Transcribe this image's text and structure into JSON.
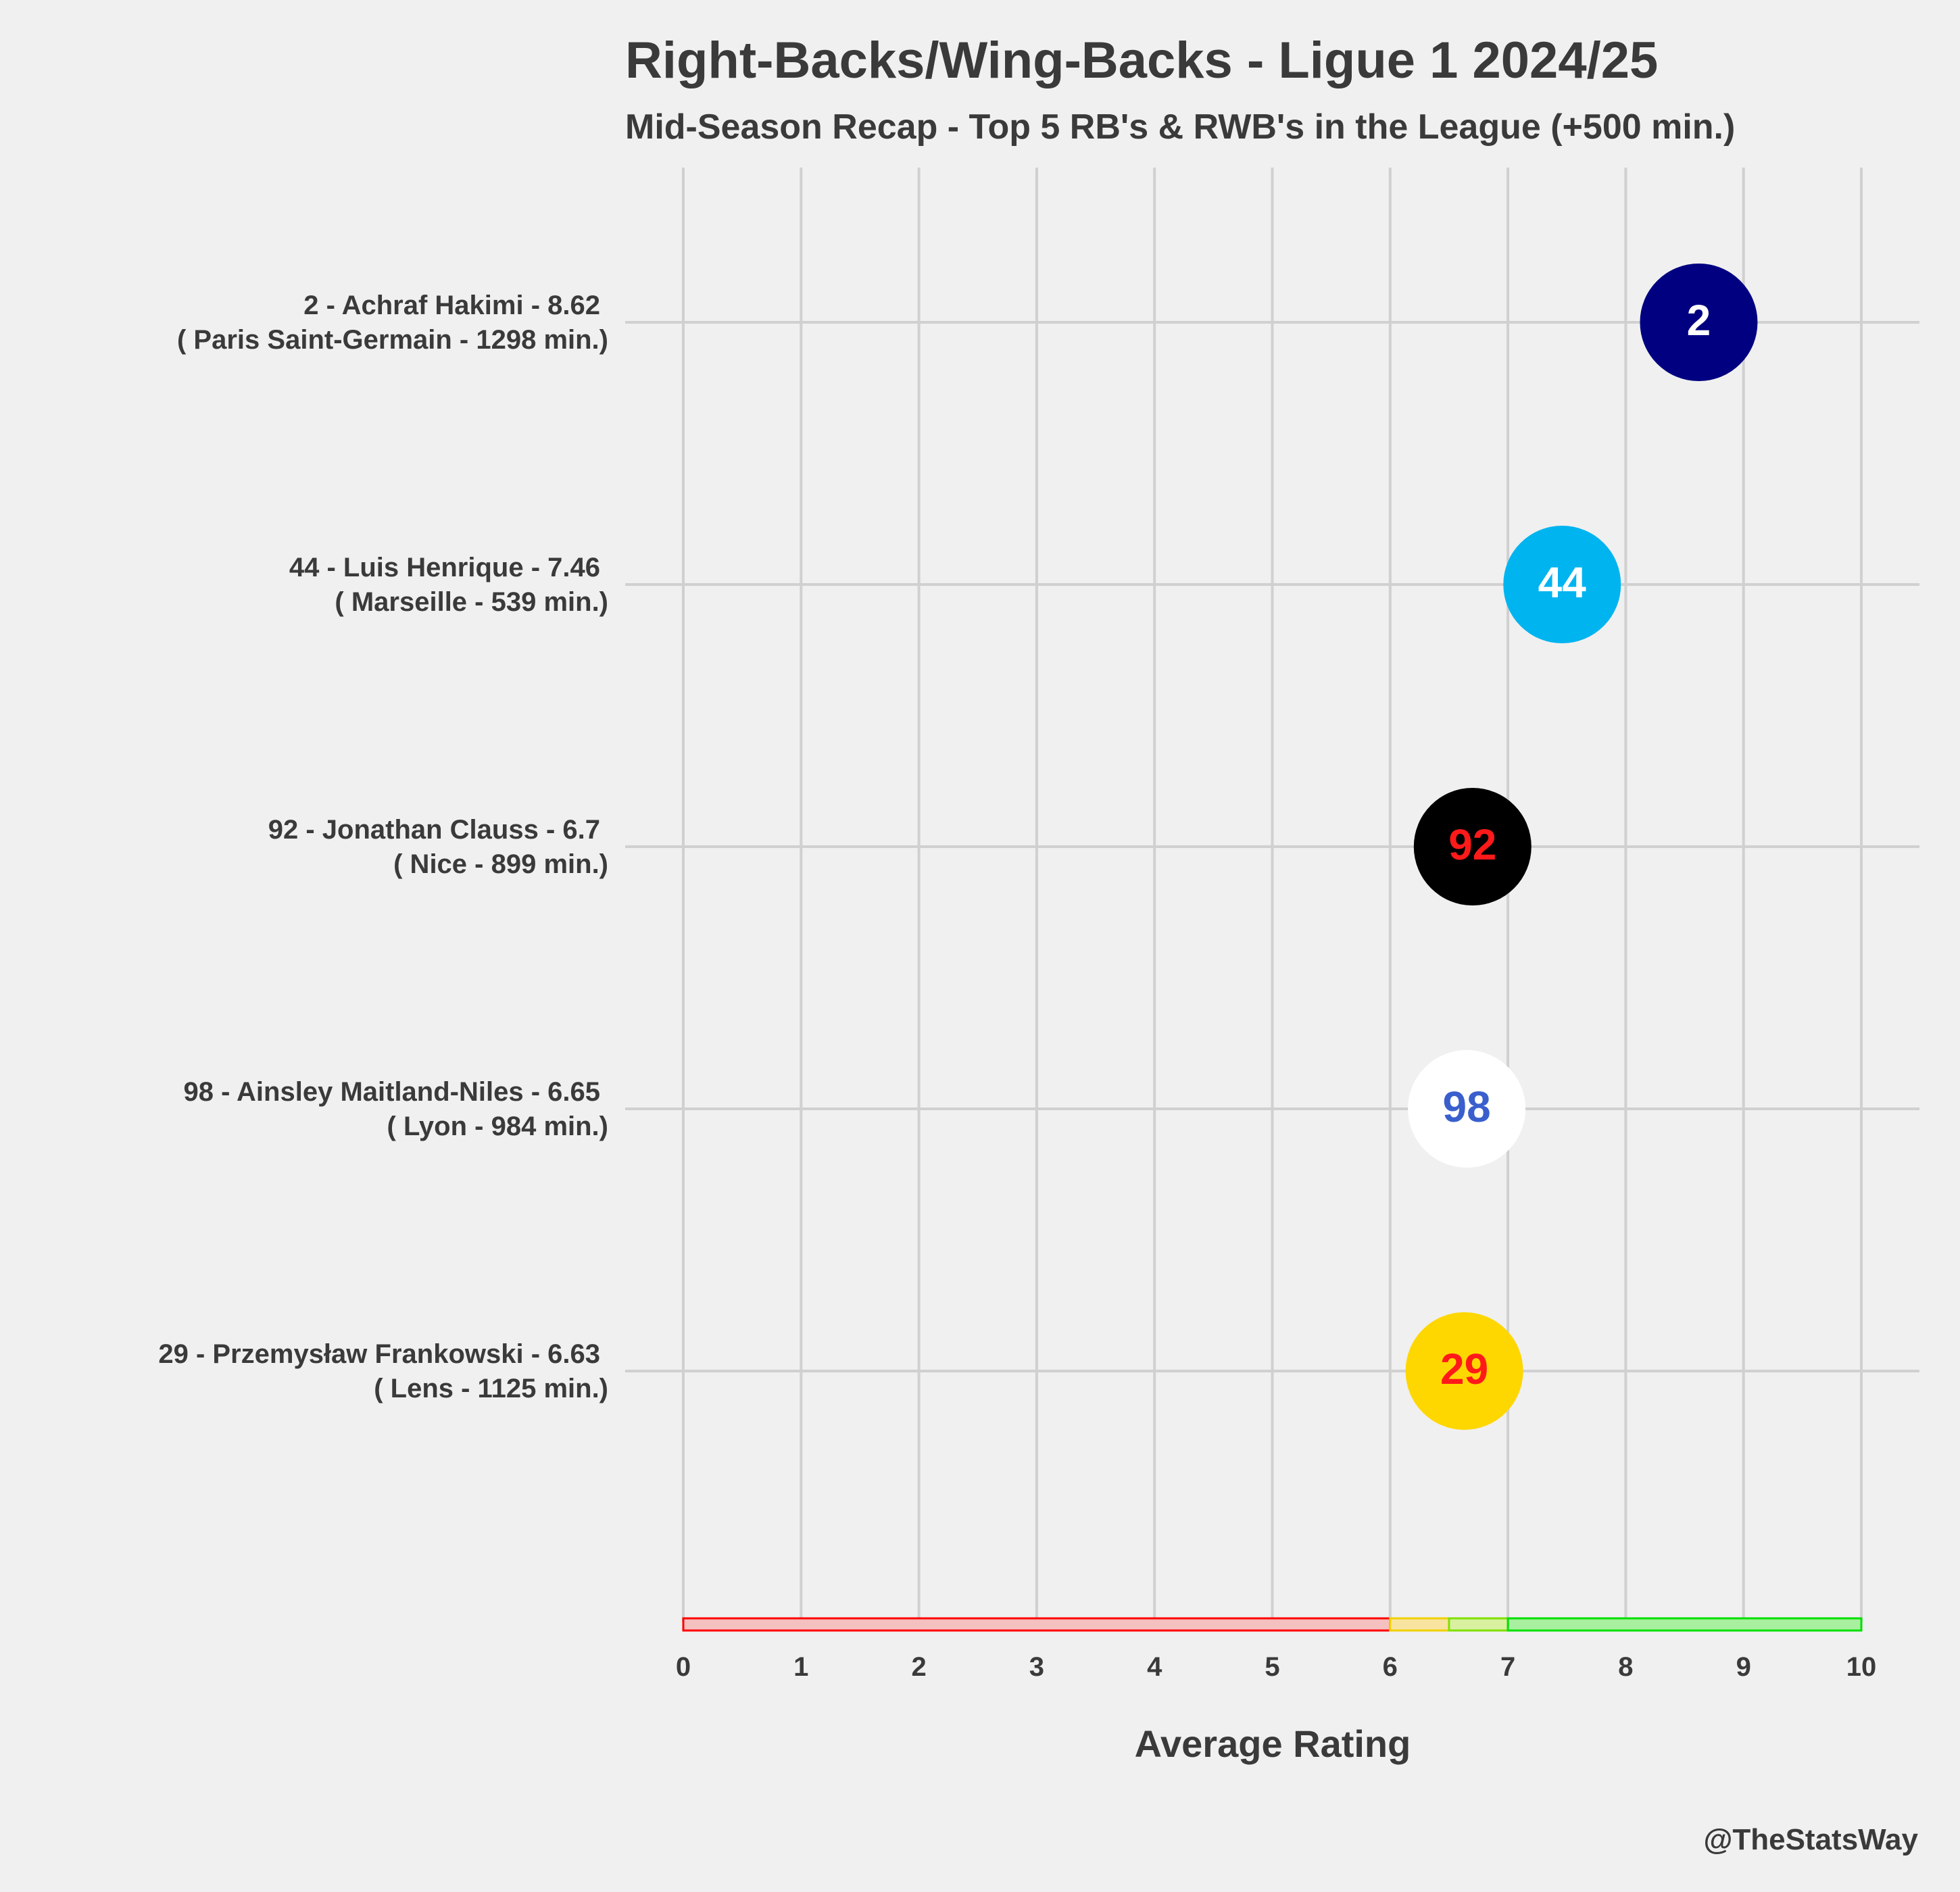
{
  "title": "Right-Backs/Wing-Backs - Ligue 1 2024/25",
  "subtitle": "Mid-Season Recap - Top 5 RB's & RWB's in the League (+500 min.)",
  "credit": "@TheStatsWay",
  "colors": {
    "background": "#f0f0f0",
    "grid": "#d0d0d0",
    "text": "#3a3a3a"
  },
  "chart_data": {
    "type": "scatter",
    "title": "Right-Backs/Wing-Backs - Ligue 1 2024/25",
    "subtitle": "Mid-Season Recap - Top 5 RB's & RWB's in the League (+500 min.)",
    "xlabel": "Average Rating",
    "ylabel": "",
    "xlim": [
      0,
      10
    ],
    "xticks": [
      "0",
      "1",
      "2",
      "3",
      "4",
      "5",
      "6",
      "7",
      "8",
      "9",
      "10"
    ],
    "grid": true,
    "legend": "none",
    "players": [
      {
        "number": "2",
        "line1": "2 - Achraf Hakimi - 8.62",
        "line2": "( Paris Saint-Germain - 1298 min.)",
        "rating": 8.62,
        "fill": "#000080",
        "text_color": "#ffffff"
      },
      {
        "number": "44",
        "line1": "44 - Luis Henrique - 7.46",
        "line2": "( Marseille - 539 min.)",
        "rating": 7.46,
        "fill": "#00b4f0",
        "text_color": "#ffffff"
      },
      {
        "number": "92",
        "line1": "92 - Jonathan Clauss - 6.7",
        "line2": "( Nice - 899 min.)",
        "rating": 6.7,
        "fill": "#000000",
        "text_color": "#ff1a1a"
      },
      {
        "number": "98",
        "line1": "98 - Ainsley Maitland-Niles - 6.65",
        "line2": "( Lyon - 984 min.)",
        "rating": 6.65,
        "fill": "#ffffff",
        "text_color": "#3a5fcd"
      },
      {
        "number": "29",
        "line1": "29 - Przemysław Frankowski - 6.63",
        "line2": "( Lens - 1125 min.)",
        "rating": 6.63,
        "fill": "#ffd700",
        "text_color": "#ff1a1a"
      }
    ],
    "rating_bands": [
      {
        "from": 0,
        "to": 6,
        "fill": "#f5c0c0",
        "stroke": "#ff0000"
      },
      {
        "from": 6,
        "to": 6.5,
        "fill": "#f8e4a0",
        "stroke": "#f0d000"
      },
      {
        "from": 6.5,
        "to": 7,
        "fill": "#d8f0a0",
        "stroke": "#80e000"
      },
      {
        "from": 7,
        "to": 10,
        "fill": "#a8f0a0",
        "stroke": "#00e000"
      }
    ]
  }
}
